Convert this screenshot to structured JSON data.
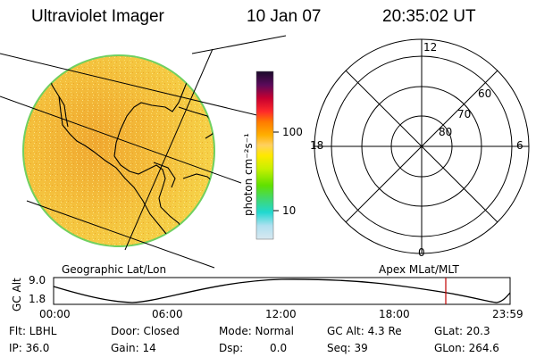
{
  "header": {
    "title": "Ultraviolet Imager",
    "date": "10 Jan 07",
    "time": "20:35:02 UT"
  },
  "colorbar": {
    "unit_label": "photon cm⁻²s⁻¹",
    "ticks": [
      "100",
      "10"
    ],
    "scale": "log",
    "colors": [
      "#1a0a2a",
      "#5a0a5a",
      "#c80030",
      "#ff2a2a",
      "#ff7a00",
      "#ffb000",
      "#ffe800",
      "#c8f000",
      "#60e000",
      "#20d8d0",
      "#d8e8f0"
    ]
  },
  "map": {
    "label": "Geographic Lat/Lon",
    "fill_color": "#f2c23a",
    "edge_color": "#70d060"
  },
  "polar": {
    "label": "Apex MLat/MLT",
    "mlt_labels": {
      "top": "12",
      "right": "6",
      "bottom": "0",
      "left": "18"
    },
    "lat_labels": [
      "60",
      "70",
      "80"
    ]
  },
  "altitude_plot": {
    "axis_label": "GC Alt",
    "y_labels": [
      "9.0",
      "1.8"
    ],
    "x_labels": [
      "00:00",
      "06:00",
      "12:00",
      "18:00",
      "23:59"
    ],
    "marker_color": "#c00000",
    "marker_hour": 20.58
  },
  "info": {
    "filter": "Flt: LBHL",
    "ip": "IP: 36.0",
    "door": "Door: Closed",
    "gain": "Gain: 14",
    "mode": "Mode: Normal",
    "dsp_label": "Dsp:",
    "dsp_value": "0.0",
    "gc_alt": "GC Alt: 4.3 Re",
    "seq": "Seq: 39",
    "glat": "GLat:  20.3",
    "glon": "GLon: 264.6"
  }
}
